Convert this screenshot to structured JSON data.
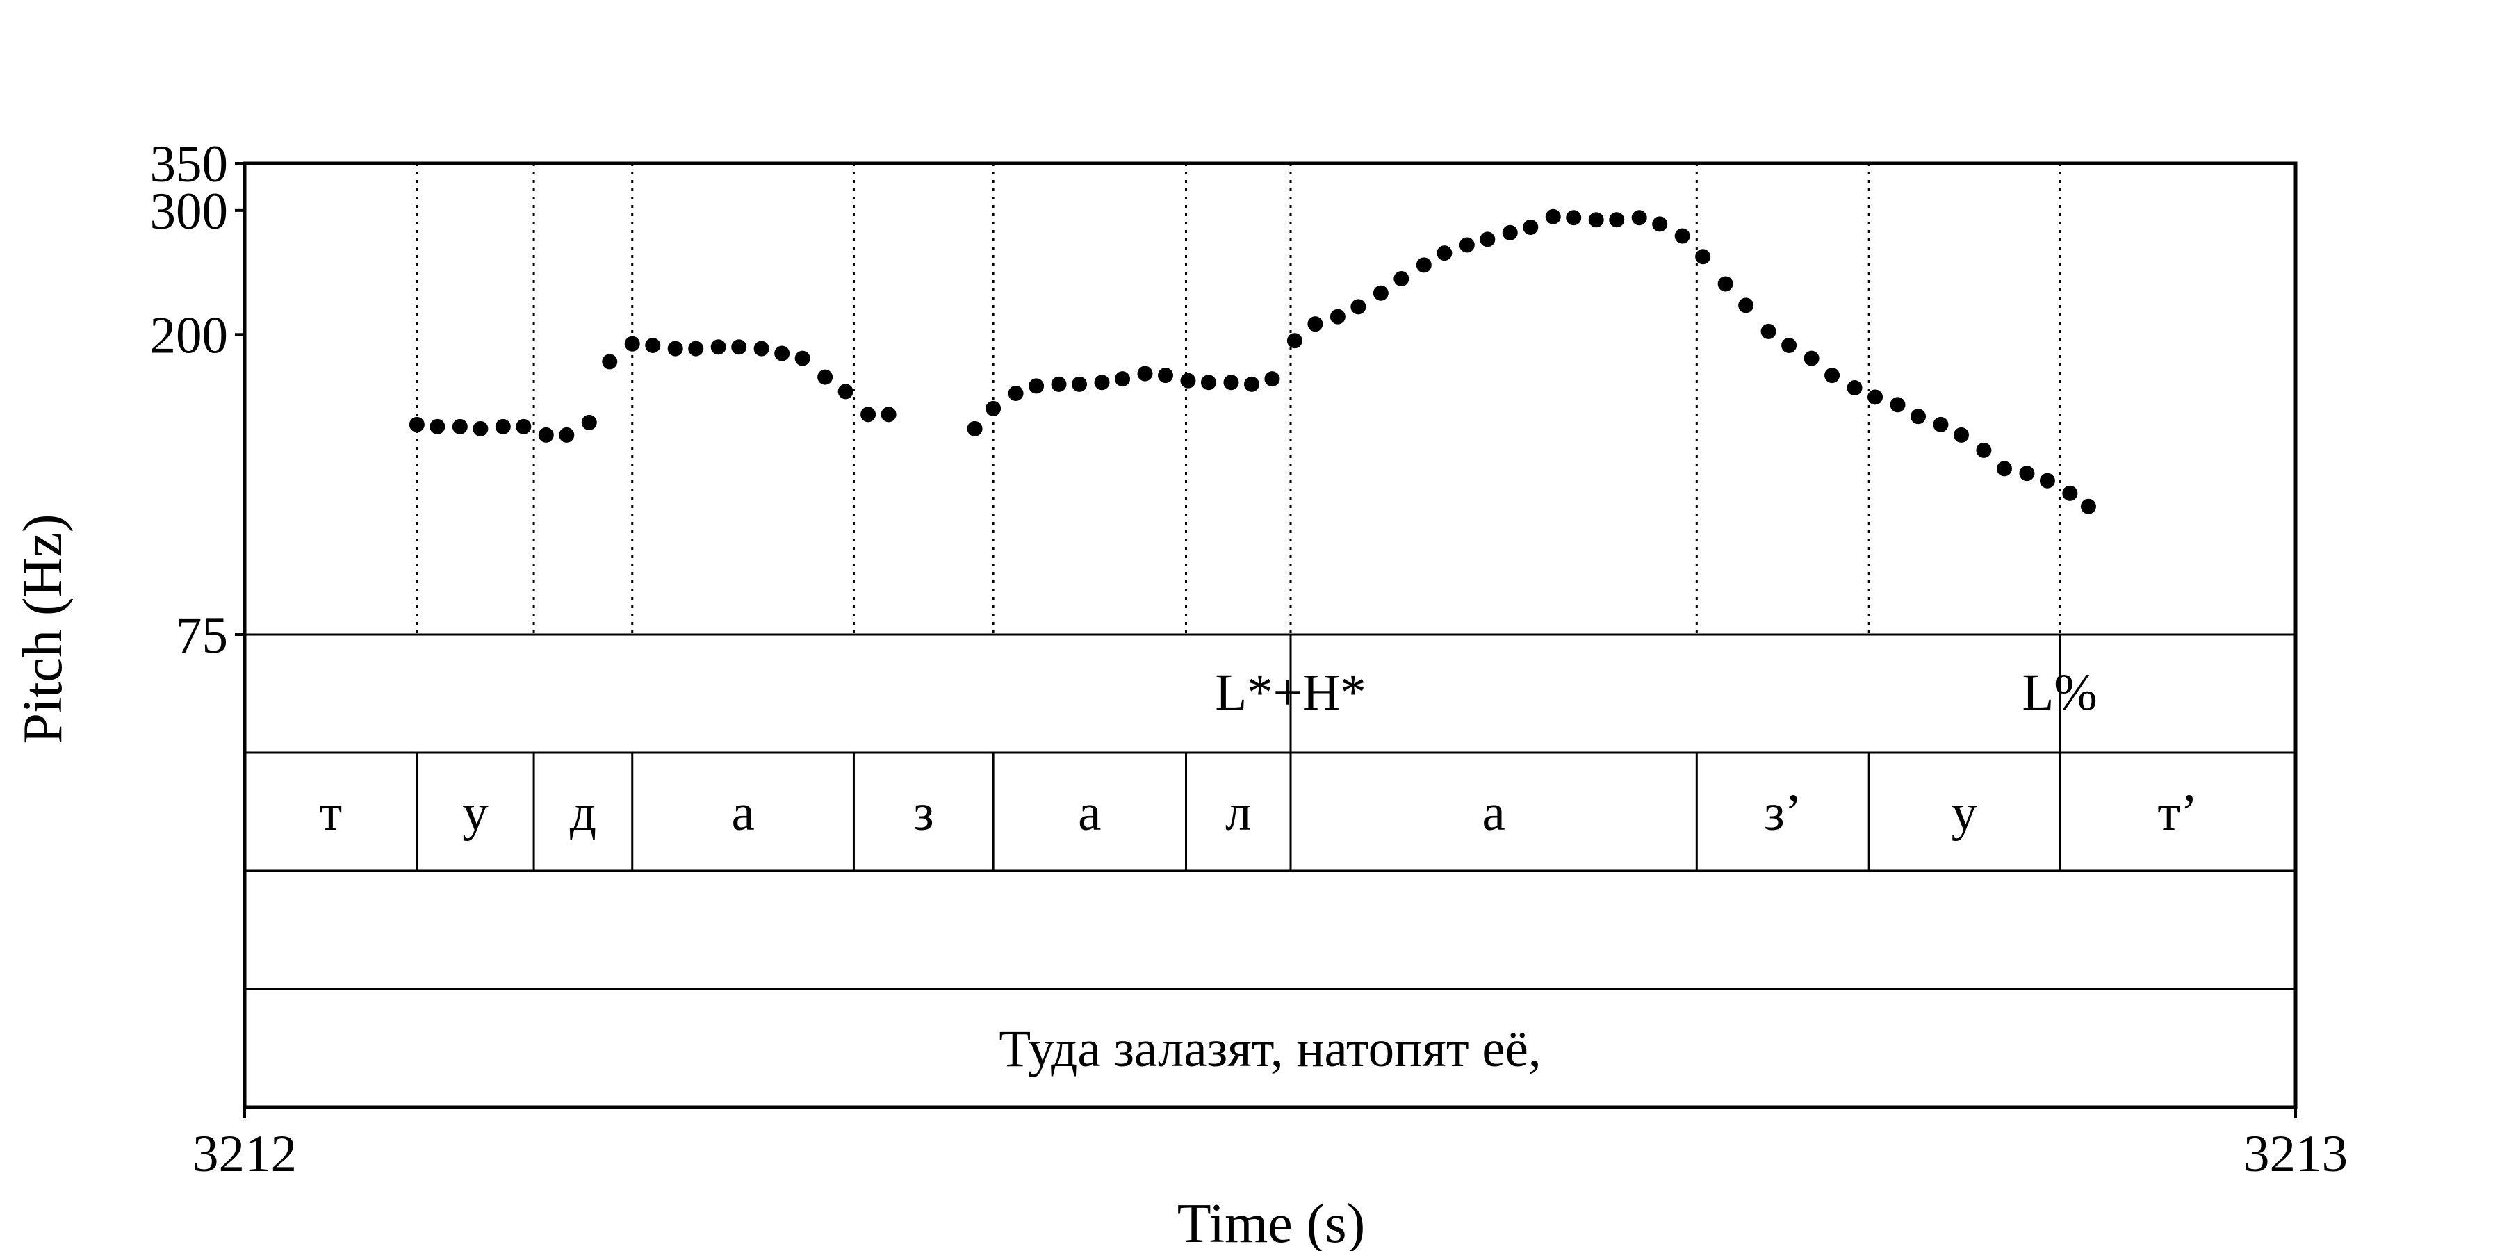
{
  "chart_data": {
    "type": "scatter",
    "title": "",
    "xlabel": "Time (s)",
    "ylabel": "Pitch (Hz)",
    "xlim": [
      3212,
      3213
    ],
    "ylim": [
      75,
      350
    ],
    "yscale": "log",
    "x_tick_labels": [
      "3212",
      "3213"
    ],
    "y_tick_labels": [
      "75",
      "200",
      "300",
      "350"
    ],
    "grid": false,
    "legend": "none",
    "point_color": "#000000",
    "segment_boundaries_s": [
      3212.084,
      3212.141,
      3212.189,
      3212.297,
      3212.365,
      3212.459,
      3212.51,
      3212.708,
      3212.792,
      3212.885
    ],
    "pitch_points": [
      {
        "t": 3212.084,
        "hz": 149
      },
      {
        "t": 3212.094,
        "hz": 148
      },
      {
        "t": 3212.105,
        "hz": 148
      },
      {
        "t": 3212.115,
        "hz": 147
      },
      {
        "t": 3212.126,
        "hz": 148
      },
      {
        "t": 3212.136,
        "hz": 148
      },
      {
        "t": 3212.147,
        "hz": 144
      },
      {
        "t": 3212.157,
        "hz": 144
      },
      {
        "t": 3212.168,
        "hz": 150
      },
      {
        "t": 3212.178,
        "hz": 183
      },
      {
        "t": 3212.189,
        "hz": 194
      },
      {
        "t": 3212.199,
        "hz": 193
      },
      {
        "t": 3212.21,
        "hz": 191
      },
      {
        "t": 3212.22,
        "hz": 191
      },
      {
        "t": 3212.231,
        "hz": 192
      },
      {
        "t": 3212.241,
        "hz": 192
      },
      {
        "t": 3212.252,
        "hz": 191
      },
      {
        "t": 3212.262,
        "hz": 188
      },
      {
        "t": 3212.272,
        "hz": 185
      },
      {
        "t": 3212.283,
        "hz": 174
      },
      {
        "t": 3212.293,
        "hz": 166
      },
      {
        "t": 3212.304,
        "hz": 154
      },
      {
        "t": 3212.314,
        "hz": 154
      },
      {
        "t": 3212.356,
        "hz": 147
      },
      {
        "t": 3212.365,
        "hz": 157
      },
      {
        "t": 3212.376,
        "hz": 165
      },
      {
        "t": 3212.386,
        "hz": 169
      },
      {
        "t": 3212.397,
        "hz": 170
      },
      {
        "t": 3212.407,
        "hz": 170
      },
      {
        "t": 3212.418,
        "hz": 171
      },
      {
        "t": 3212.428,
        "hz": 173
      },
      {
        "t": 3212.439,
        "hz": 176
      },
      {
        "t": 3212.449,
        "hz": 175
      },
      {
        "t": 3212.46,
        "hz": 172
      },
      {
        "t": 3212.47,
        "hz": 171
      },
      {
        "t": 3212.481,
        "hz": 171
      },
      {
        "t": 3212.491,
        "hz": 170
      },
      {
        "t": 3212.501,
        "hz": 173
      },
      {
        "t": 3212.512,
        "hz": 196
      },
      {
        "t": 3212.522,
        "hz": 207
      },
      {
        "t": 3212.533,
        "hz": 212
      },
      {
        "t": 3212.543,
        "hz": 219
      },
      {
        "t": 3212.554,
        "hz": 229
      },
      {
        "t": 3212.564,
        "hz": 240
      },
      {
        "t": 3212.575,
        "hz": 251
      },
      {
        "t": 3212.585,
        "hz": 261
      },
      {
        "t": 3212.596,
        "hz": 268
      },
      {
        "t": 3212.606,
        "hz": 273
      },
      {
        "t": 3212.617,
        "hz": 279
      },
      {
        "t": 3212.627,
        "hz": 284
      },
      {
        "t": 3212.638,
        "hz": 294
      },
      {
        "t": 3212.648,
        "hz": 293
      },
      {
        "t": 3212.659,
        "hz": 291
      },
      {
        "t": 3212.669,
        "hz": 291
      },
      {
        "t": 3212.68,
        "hz": 293
      },
      {
        "t": 3212.69,
        "hz": 287
      },
      {
        "t": 3212.701,
        "hz": 276
      },
      {
        "t": 3212.711,
        "hz": 258
      },
      {
        "t": 3212.722,
        "hz": 236
      },
      {
        "t": 3212.732,
        "hz": 220
      },
      {
        "t": 3212.743,
        "hz": 202
      },
      {
        "t": 3212.753,
        "hz": 193
      },
      {
        "t": 3212.764,
        "hz": 185
      },
      {
        "t": 3212.774,
        "hz": 175
      },
      {
        "t": 3212.785,
        "hz": 168
      },
      {
        "t": 3212.795,
        "hz": 163
      },
      {
        "t": 3212.806,
        "hz": 159
      },
      {
        "t": 3212.816,
        "hz": 153
      },
      {
        "t": 3212.827,
        "hz": 149
      },
      {
        "t": 3212.837,
        "hz": 144
      },
      {
        "t": 3212.848,
        "hz": 137
      },
      {
        "t": 3212.858,
        "hz": 129
      },
      {
        "t": 3212.869,
        "hz": 127
      },
      {
        "t": 3212.879,
        "hz": 124
      },
      {
        "t": 3212.89,
        "hz": 119
      },
      {
        "t": 3212.899,
        "hz": 114
      }
    ],
    "tiers": [
      {
        "name": "",
        "type": "point",
        "items": [
          {
            "t": 3212.51,
            "label": "L*+H*"
          },
          {
            "t": 3212.885,
            "label": "L%"
          }
        ]
      },
      {
        "name": "",
        "type": "interval",
        "items": [
          {
            "start": 3212.0,
            "end": 3212.084,
            "label": "т"
          },
          {
            "start": 3212.084,
            "end": 3212.141,
            "label": "у"
          },
          {
            "start": 3212.141,
            "end": 3212.189,
            "label": "д"
          },
          {
            "start": 3212.189,
            "end": 3212.297,
            "label": "а"
          },
          {
            "start": 3212.297,
            "end": 3212.365,
            "label": "з"
          },
          {
            "start": 3212.365,
            "end": 3212.459,
            "label": "а"
          },
          {
            "start": 3212.459,
            "end": 3212.51,
            "label": "л"
          },
          {
            "start": 3212.51,
            "end": 3212.708,
            "label": "а"
          },
          {
            "start": 3212.708,
            "end": 3212.792,
            "label": "з’"
          },
          {
            "start": 3212.792,
            "end": 3212.885,
            "label": "у"
          },
          {
            "start": 3212.885,
            "end": 3213.0,
            "label": "т’"
          }
        ]
      },
      {
        "name": "",
        "type": "interval",
        "items": []
      },
      {
        "name": "",
        "type": "interval",
        "items": [
          {
            "start": 3212.0,
            "end": 3213.0,
            "label": "Туда залазят, натопят её,"
          }
        ]
      }
    ]
  }
}
